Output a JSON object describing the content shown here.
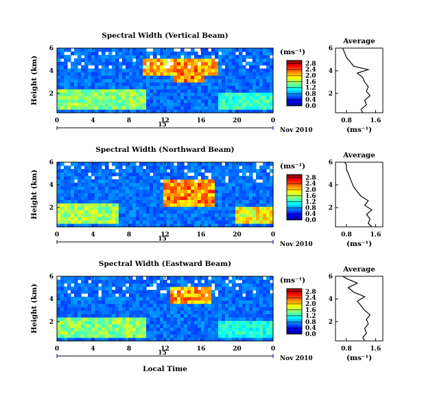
{
  "chart_data": [
    {
      "type": "heatmap",
      "title": "Spectral Width (Vertical Beam)",
      "ylabel": "Height (km)",
      "x_ticks": [
        "0",
        "4",
        "8",
        "12",
        "16",
        "20",
        "0"
      ],
      "y_ticks": [
        "2",
        "4",
        "6"
      ],
      "day_label": "15",
      "date_label": "Nov 2010",
      "xlim": [
        0,
        24
      ],
      "ylim": [
        0.3,
        6.0
      ],
      "colorbar": {
        "unit": "(ms⁻¹)",
        "ticks": [
          "0.0",
          "0.4",
          "0.8",
          "1.2",
          "1.6",
          "2.0",
          "2.4",
          "2.8"
        ],
        "range": [
          0.0,
          3.0
        ]
      },
      "regions": [
        {
          "x": [
            9.5,
            18.0
          ],
          "y": [
            3.5,
            5.0
          ],
          "value": 2.4
        },
        {
          "x": [
            13.0,
            16.5
          ],
          "y": [
            3.0,
            4.8
          ],
          "value": 2.6
        },
        {
          "x": [
            0.0,
            10.0
          ],
          "y": [
            0.5,
            2.5
          ],
          "value": 1.8
        },
        {
          "x": [
            18.0,
            24.0
          ],
          "y": [
            0.5,
            2.0
          ],
          "value": 1.5
        }
      ],
      "average_profile": {
        "title": "Average",
        "xlabel": "(ms⁻¹)",
        "x_ticks": [
          "0.8",
          "1.6"
        ],
        "y_ticks": [
          "2",
          "4",
          "6"
        ],
        "xlim": [
          0.5,
          1.8
        ],
        "height_km": [
          0.3,
          0.6,
          1.0,
          1.4,
          1.8,
          2.2,
          2.6,
          3.0,
          3.4,
          3.8,
          4.1,
          4.4,
          4.8,
          5.2,
          5.6,
          6.0
        ],
        "width_ms": [
          1.25,
          1.2,
          1.35,
          1.3,
          1.45,
          1.35,
          1.4,
          1.3,
          1.25,
          1.1,
          1.4,
          1.0,
          0.9,
          0.8,
          0.75,
          0.7
        ]
      }
    },
    {
      "type": "heatmap",
      "title": "Spectral Width (Northward Beam)",
      "ylabel": "Height (km)",
      "x_ticks": [
        "0",
        "4",
        "8",
        "12",
        "16",
        "20",
        "0"
      ],
      "y_ticks": [
        "2",
        "4",
        "6"
      ],
      "day_label": "15",
      "date_label": "Nov 2010",
      "xlim": [
        0,
        24
      ],
      "ylim": [
        0.3,
        6.0
      ],
      "colorbar": {
        "unit": "(ms⁻¹)",
        "ticks": [
          "0.0",
          "0.4",
          "0.8",
          "1.2",
          "1.6",
          "2.0",
          "2.4",
          "2.8"
        ],
        "range": [
          0.0,
          3.0
        ]
      },
      "regions": [
        {
          "x": [
            12.0,
            17.5
          ],
          "y": [
            2.0,
            4.5
          ],
          "value": 2.6
        },
        {
          "x": [
            0.0,
            7.0
          ],
          "y": [
            0.5,
            2.5
          ],
          "value": 1.9
        },
        {
          "x": [
            20.0,
            24.0
          ],
          "y": [
            0.5,
            2.0
          ],
          "value": 2.2
        }
      ],
      "average_profile": {
        "title": "Average",
        "xlabel": "(ms⁻¹)",
        "x_ticks": [
          "0.8",
          "1.6"
        ],
        "y_ticks": [
          "2",
          "4",
          "6"
        ],
        "xlim": [
          0.5,
          1.8
        ],
        "height_km": [
          0.3,
          0.6,
          1.0,
          1.4,
          1.8,
          2.2,
          2.6,
          3.0,
          3.4,
          3.8,
          4.2,
          4.6,
          5.0,
          5.4,
          5.8,
          6.0
        ],
        "width_ms": [
          1.5,
          1.4,
          1.45,
          1.35,
          1.5,
          1.3,
          1.4,
          1.2,
          1.1,
          1.0,
          0.95,
          0.9,
          0.85,
          0.8,
          0.8,
          0.75
        ]
      }
    },
    {
      "type": "heatmap",
      "title": "Spectral Width (Eastward Beam)",
      "ylabel": "Height (km)",
      "xlabel": "Local Time",
      "x_ticks": [
        "0",
        "4",
        "8",
        "12",
        "16",
        "20",
        "0"
      ],
      "y_ticks": [
        "2",
        "4",
        "6"
      ],
      "day_label": "15",
      "date_label": "Nov 2010",
      "xlim": [
        0,
        24
      ],
      "ylim": [
        0.3,
        6.0
      ],
      "colorbar": {
        "unit": "(ms⁻¹)",
        "ticks": [
          "0.0",
          "0.4",
          "0.8",
          "1.2",
          "1.6",
          "2.0",
          "2.4",
          "2.8"
        ],
        "range": [
          0.0,
          3.0
        ]
      },
      "regions": [
        {
          "x": [
            12.5,
            17.0
          ],
          "y": [
            3.5,
            5.0
          ],
          "value": 2.5
        },
        {
          "x": [
            0.0,
            10.0
          ],
          "y": [
            0.5,
            2.5
          ],
          "value": 1.8
        },
        {
          "x": [
            18.0,
            24.0
          ],
          "y": [
            0.5,
            2.0
          ],
          "value": 1.4
        }
      ],
      "average_profile": {
        "title": "Average",
        "xlabel": "(ms⁻¹)",
        "x_ticks": [
          "0.8",
          "1.6"
        ],
        "y_ticks": [
          "2",
          "4",
          "6"
        ],
        "xlim": [
          0.5,
          1.8
        ],
        "height_km": [
          0.3,
          0.6,
          1.0,
          1.4,
          1.8,
          2.2,
          2.6,
          3.0,
          3.4,
          3.8,
          4.2,
          4.6,
          5.0,
          5.4,
          5.8,
          6.0
        ],
        "width_ms": [
          1.3,
          1.25,
          1.35,
          1.3,
          1.4,
          1.35,
          1.45,
          1.3,
          1.2,
          1.1,
          1.3,
          1.0,
          0.85,
          1.1,
          0.8,
          0.7
        ]
      }
    }
  ]
}
